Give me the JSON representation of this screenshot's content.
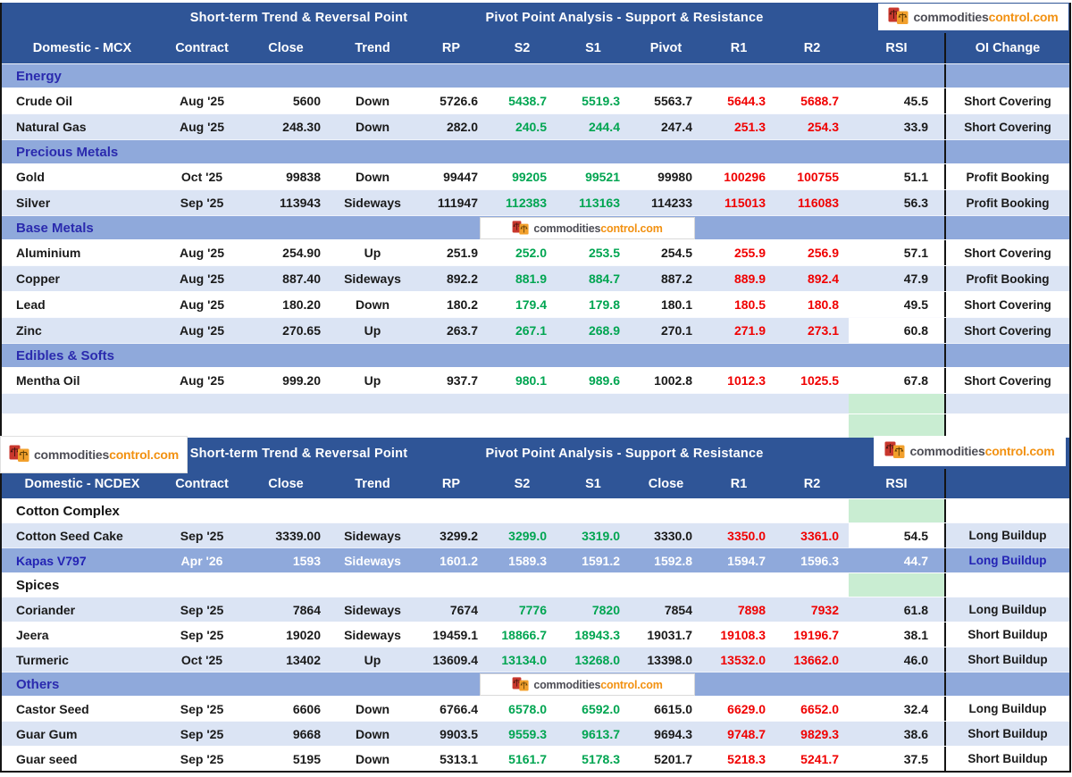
{
  "logo": {
    "text_dark": "commodities",
    "text_orange": "control.com"
  },
  "colors": {
    "header_blue": "#2f5597",
    "section_blue": "#8fa9db",
    "row_alt_blue": "#dbe4f4",
    "support_green_text": "#00a551",
    "resistance_red_text": "#f00000",
    "section_label_indigo": "#2a2aae",
    "highlight_cell_green": "#c9edd2",
    "logo_orange": "#f29111"
  },
  "tables": [
    {
      "id": "mcx",
      "banner_left": "Short-term Trend & Reversal Point",
      "banner_right": "Pivot Point Analysis - Support & Resistance",
      "columns": [
        "Domestic - MCX",
        "Contract",
        "Close",
        "Trend",
        "RP",
        "S2",
        "S1",
        "Pivot",
        "R1",
        "R2",
        "RSI",
        "OI Change"
      ],
      "rows": [
        {
          "type": "section",
          "name": "Energy"
        },
        {
          "type": "data",
          "shade": "white",
          "cells": [
            "Crude Oil",
            "Aug '25",
            "5600",
            "Down",
            "5726.6",
            "5438.7",
            "5519.3",
            "5563.7",
            "5644.3",
            "5688.7",
            "45.5",
            "Short Covering"
          ]
        },
        {
          "type": "data",
          "shade": "alt",
          "cells": [
            "Natural Gas",
            "Aug '25",
            "248.30",
            "Down",
            "282.0",
            "240.5",
            "244.4",
            "247.4",
            "251.3",
            "254.3",
            "33.9",
            "Short Covering"
          ]
        },
        {
          "type": "section",
          "name": "Precious Metals"
        },
        {
          "type": "data",
          "shade": "white",
          "cells": [
            "Gold",
            "Oct '25",
            "99838",
            "Down",
            "99447",
            "99205",
            "99521",
            "99980",
            "100296",
            "100755",
            "51.1",
            "Profit Booking"
          ]
        },
        {
          "type": "data",
          "shade": "alt",
          "cells": [
            "Silver",
            "Sep '25",
            "113943",
            "Sideways",
            "111947",
            "112383",
            "113163",
            "114233",
            "115013",
            "116083",
            "56.3",
            "Profit Booking"
          ]
        },
        {
          "type": "section",
          "name": "Base Metals"
        },
        {
          "type": "data",
          "shade": "white",
          "cells": [
            "Aluminium",
            "Aug '25",
            "254.90",
            "Up",
            "251.9",
            "252.0",
            "253.5",
            "254.5",
            "255.9",
            "256.9",
            "57.1",
            "Short Covering"
          ]
        },
        {
          "type": "data",
          "shade": "alt",
          "cells": [
            "Copper",
            "Aug '25",
            "887.40",
            "Sideways",
            "892.2",
            "881.9",
            "884.7",
            "887.2",
            "889.9",
            "892.4",
            "47.9",
            "Profit Booking"
          ]
        },
        {
          "type": "data",
          "shade": "white",
          "cells": [
            "Lead",
            "Aug '25",
            "180.20",
            "Down",
            "180.2",
            "179.4",
            "179.8",
            "180.1",
            "180.5",
            "180.8",
            "49.5",
            "Short Covering"
          ]
        },
        {
          "type": "data",
          "shade": "alt",
          "rsi_bg": "white",
          "cells": [
            "Zinc",
            "Aug '25",
            "270.65",
            "Up",
            "263.7",
            "267.1",
            "268.9",
            "270.1",
            "271.9",
            "273.1",
            "60.8",
            "Short Covering"
          ]
        },
        {
          "type": "section",
          "name": "Edibles & Softs"
        },
        {
          "type": "data",
          "shade": "white",
          "cells": [
            "Mentha Oil",
            "Aug '25",
            "999.20",
            "Up",
            "937.7",
            "980.1",
            "989.6",
            "1002.8",
            "1012.3",
            "1025.5",
            "67.8",
            "Short Covering"
          ]
        },
        {
          "type": "spacer",
          "shade": "alt",
          "rsi_bg": "green"
        },
        {
          "type": "spacer",
          "shade": "white",
          "rsi_bg": "green"
        }
      ]
    },
    {
      "id": "ncdex",
      "banner_left": "Short-term Trend & Reversal Point",
      "banner_right": "Pivot Point Analysis - Support & Resistance",
      "columns": [
        "Domestic - NCDEX",
        "Contract",
        "Close",
        "Trend",
        "RP",
        "S2",
        "S1",
        "Close",
        "R1",
        "R2",
        "RSI",
        ""
      ],
      "rows": [
        {
          "type": "section",
          "name": "Cotton Complex",
          "plain": true,
          "rsi_bg": "green"
        },
        {
          "type": "data",
          "shade": "alt",
          "rsi_bg": "white",
          "cells": [
            "Cotton Seed Cake",
            "Sep '25",
            "3339.00",
            "Sideways",
            "3299.2",
            "3299.0",
            "3319.0",
            "3330.0",
            "3350.0",
            "3361.0",
            "54.5",
            "Long Buildup"
          ]
        },
        {
          "type": "data",
          "shade": "white",
          "highlight": true,
          "cells": [
            "Kapas V797",
            "Apr '26",
            "1593",
            "Sideways",
            "1601.2",
            "1589.3",
            "1591.2",
            "1592.8",
            "1594.7",
            "1596.3",
            "44.7",
            "Long Buildup"
          ]
        },
        {
          "type": "section",
          "name": "Spices",
          "plain": true,
          "rsi_bg": "green"
        },
        {
          "type": "data",
          "shade": "alt",
          "cells": [
            "Coriander",
            "Sep '25",
            "7864",
            "Sideways",
            "7674",
            "7776",
            "7820",
            "7854",
            "7898",
            "7932",
            "61.8",
            "Long Buildup"
          ]
        },
        {
          "type": "data",
          "shade": "white",
          "cells": [
            "Jeera",
            "Sep '25",
            "19020",
            "Sideways",
            "19459.1",
            "18866.7",
            "18943.3",
            "19031.7",
            "19108.3",
            "19196.7",
            "38.1",
            "Short Buildup"
          ]
        },
        {
          "type": "data",
          "shade": "alt",
          "cells": [
            "Turmeric",
            "Oct '25",
            "13402",
            "Up",
            "13609.4",
            "13134.0",
            "13268.0",
            "13398.0",
            "13532.0",
            "13662.0",
            "46.0",
            "Short Buildup"
          ]
        },
        {
          "type": "section",
          "name": "Others"
        },
        {
          "type": "data",
          "shade": "white",
          "cells": [
            "Castor Seed",
            "Sep '25",
            "6606",
            "Down",
            "6766.4",
            "6578.0",
            "6592.0",
            "6615.0",
            "6629.0",
            "6652.0",
            "32.4",
            "Long Buildup"
          ]
        },
        {
          "type": "data",
          "shade": "alt",
          "cells": [
            "Guar Gum",
            "Sep '25",
            "9668",
            "Down",
            "9903.5",
            "9559.3",
            "9613.7",
            "9694.3",
            "9748.7",
            "9829.3",
            "38.6",
            "Short Buildup"
          ]
        },
        {
          "type": "data",
          "shade": "white",
          "cells": [
            "Guar seed",
            "Sep '25",
            "5195",
            "Down",
            "5313.1",
            "5161.7",
            "5178.3",
            "5201.7",
            "5218.3",
            "5241.7",
            "37.5",
            "Short Buildup"
          ]
        }
      ]
    }
  ]
}
